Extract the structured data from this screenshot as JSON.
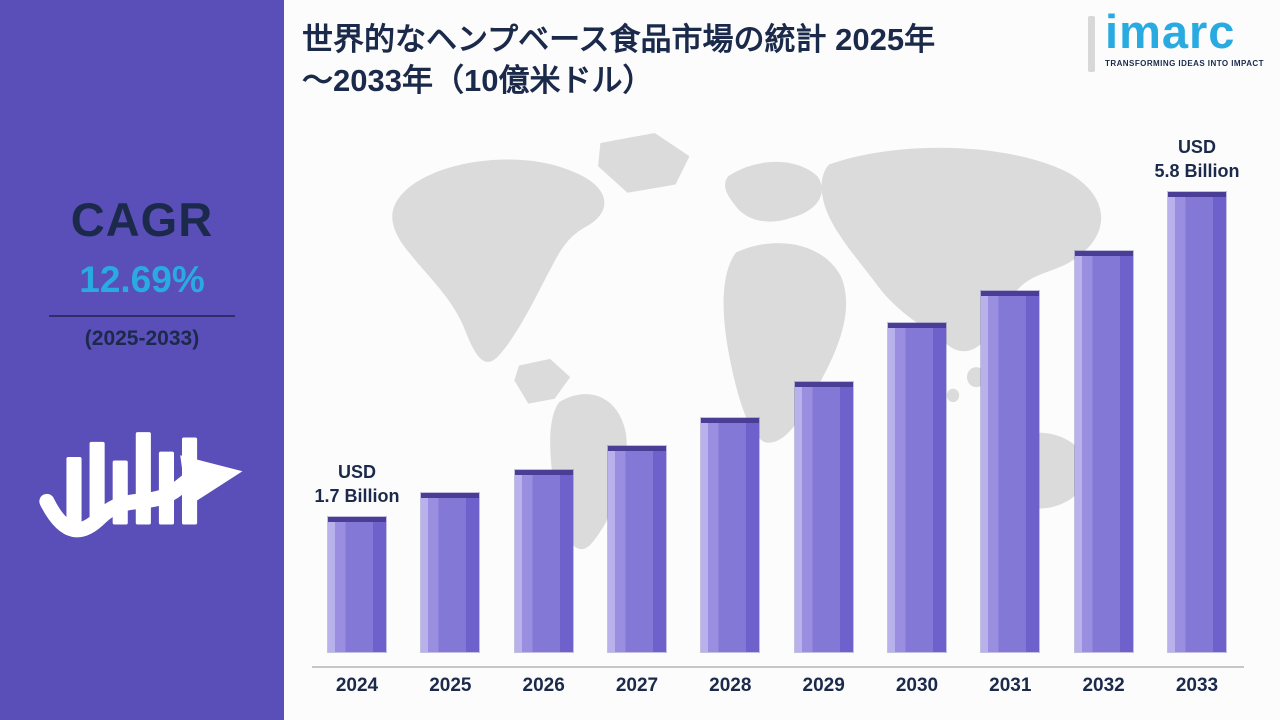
{
  "sidebar": {
    "cagr_label": "CAGR",
    "cagr_value": "12.69%",
    "cagr_period": "(2025-2033)"
  },
  "header": {
    "title_line1": "世界的なヘンプベース食品市場の統計 2025年",
    "title_line2": "～2033年（10億米ドル）"
  },
  "logo": {
    "brand": "imarc",
    "tagline": "TRANSFORMING IDEAS INTO IMPACT"
  },
  "chart_data": {
    "type": "bar",
    "title": "世界的なヘンプベース食品市場の統計 2025年～2033年（10億米ドル）",
    "unit": "USD Billion",
    "categories": [
      "2024",
      "2025",
      "2026",
      "2027",
      "2028",
      "2029",
      "2030",
      "2031",
      "2032",
      "2033"
    ],
    "values": [
      1.7,
      2.0,
      2.3,
      2.6,
      2.95,
      3.4,
      4.15,
      4.55,
      5.05,
      5.8
    ],
    "ylim": [
      0,
      6
    ],
    "grid": false,
    "legend": false,
    "annotations": [
      {
        "category": "2024",
        "lines": [
          "USD",
          "1.7 Billion"
        ]
      },
      {
        "category": "2033",
        "lines": [
          "USD",
          "5.8 Billion"
        ]
      }
    ]
  },
  "colors": {
    "sidebar_bg": "#5A4EB8",
    "accent_cyan": "#29ABE2",
    "navy": "#1B2A4B",
    "bar_purple": "#8377D8",
    "map_gray": "#DBDBDB"
  }
}
